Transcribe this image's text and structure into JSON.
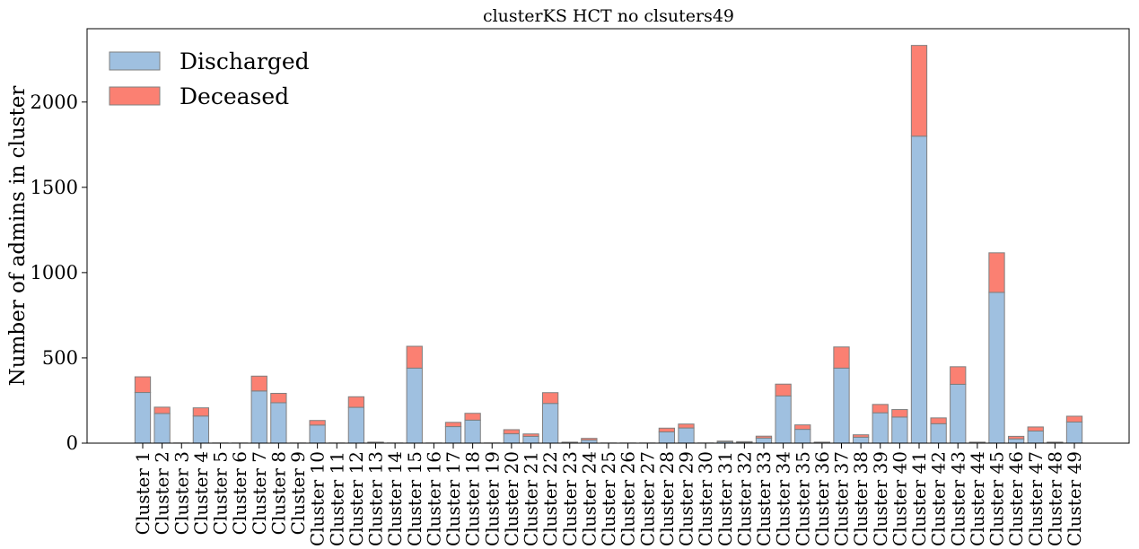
{
  "chart_data": {
    "type": "bar",
    "stacked": true,
    "title": "clusterKS HCT no clsuters49",
    "xlabel": "",
    "ylabel": "Number of admins in cluster",
    "ylim": [
      0,
      2430
    ],
    "yticks": [
      0,
      500,
      1000,
      1500,
      2000
    ],
    "grid": false,
    "legend_position": "top-left",
    "categories": [
      "Cluster 1",
      "Cluster 2",
      "Cluster 3",
      "Cluster 4",
      "Cluster 5",
      "Cluster 6",
      "Cluster 7",
      "Cluster 8",
      "Cluster 9",
      "Cluster 10",
      "Cluster 11",
      "Cluster 12",
      "Cluster 13",
      "Cluster 14",
      "Cluster 15",
      "Cluster 16",
      "Cluster 17",
      "Cluster 18",
      "Cluster 19",
      "Cluster 20",
      "Cluster 21",
      "Cluster 22",
      "Cluster 23",
      "Cluster 24",
      "Cluster 25",
      "Cluster 26",
      "Cluster 27",
      "Cluster 28",
      "Cluster 29",
      "Cluster 30",
      "Cluster 31",
      "Cluster 32",
      "Cluster 33",
      "Cluster 34",
      "Cluster 35",
      "Cluster 36",
      "Cluster 37",
      "Cluster 38",
      "Cluster 39",
      "Cluster 40",
      "Cluster 41",
      "Cluster 42",
      "Cluster 43",
      "Cluster 44",
      "Cluster 45",
      "Cluster 46",
      "Cluster 47",
      "Cluster 48",
      "Cluster 49"
    ],
    "series": [
      {
        "name": "Discharged",
        "color": "#9fc0e0",
        "values": [
          297,
          174,
          1,
          159,
          1,
          1,
          306,
          237,
          1,
          106,
          1,
          210,
          4,
          1,
          440,
          1,
          97,
          135,
          1,
          55,
          40,
          233,
          4,
          18,
          1,
          1,
          1,
          66,
          89,
          1,
          8,
          6,
          30,
          277,
          81,
          4,
          440,
          35,
          178,
          153,
          1800,
          114,
          345,
          4,
          884,
          25,
          71,
          4,
          124
        ]
      },
      {
        "name": "Deceased",
        "color": "#fb8072",
        "values": [
          92,
          37,
          0,
          48,
          0,
          0,
          87,
          55,
          0,
          27,
          0,
          62,
          2,
          0,
          128,
          0,
          25,
          40,
          0,
          24,
          14,
          63,
          2,
          10,
          0,
          0,
          0,
          22,
          23,
          0,
          4,
          3,
          11,
          69,
          26,
          2,
          124,
          14,
          49,
          44,
          532,
          34,
          103,
          2,
          232,
          15,
          24,
          2,
          34
        ]
      }
    ]
  }
}
